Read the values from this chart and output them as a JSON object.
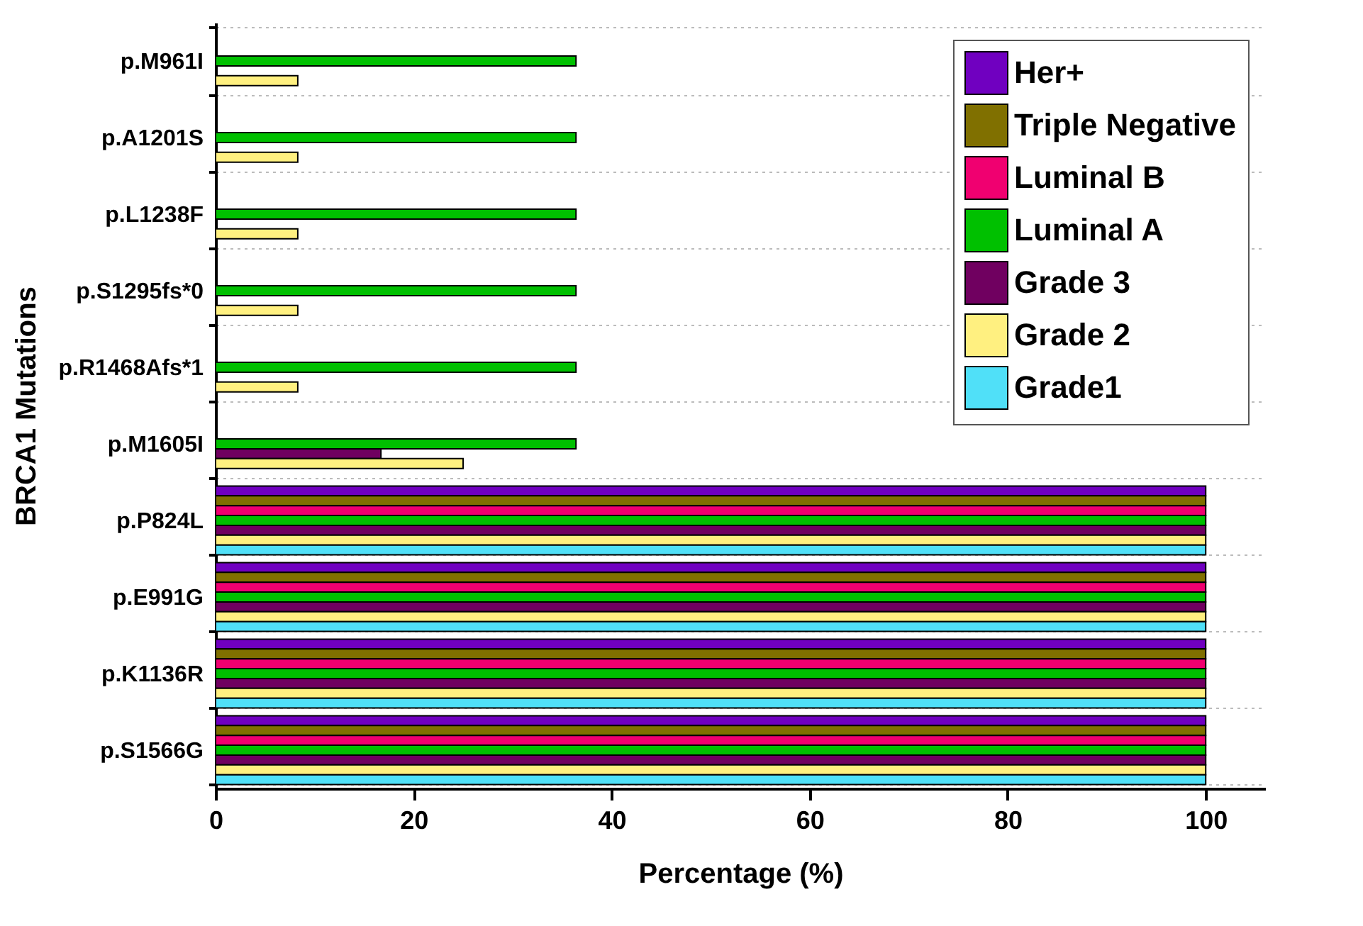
{
  "chart_data": {
    "type": "bar",
    "orientation": "horizontal",
    "xlabel": "Percentage (%)",
    "ylabel": "BRCA1 Mutations",
    "categories": [
      "p.M961I",
      "p.A1201S",
      "p.L1238F",
      "p.S1295fs*0",
      "p.R1468Afs*1",
      "p.M1605I",
      "p.P824L",
      "p.E991G",
      "p.K1136R",
      "p.S1566G"
    ],
    "series": [
      {
        "name": "Her+",
        "color": "#7000c0",
        "values": [
          null,
          null,
          null,
          null,
          null,
          null,
          100,
          100,
          100,
          100
        ]
      },
      {
        "name": "Triple Negative",
        "color": "#807000",
        "values": [
          null,
          null,
          null,
          null,
          null,
          null,
          100,
          100,
          100,
          100
        ]
      },
      {
        "name": "Luminal B",
        "color": "#f00070",
        "values": [
          null,
          null,
          null,
          null,
          null,
          null,
          100,
          100,
          100,
          100
        ]
      },
      {
        "name": "Luminal A",
        "color": "#00c000",
        "values": [
          36.4,
          36.4,
          36.4,
          36.4,
          36.4,
          36.4,
          100,
          100,
          100,
          100
        ]
      },
      {
        "name": "Grade 3",
        "color": "#700060",
        "values": [
          null,
          null,
          null,
          null,
          null,
          16.7,
          100,
          100,
          100,
          100
        ]
      },
      {
        "name": "Grade 2",
        "color": "#fff080",
        "values": [
          8.3,
          8.3,
          8.3,
          8.3,
          8.3,
          25,
          100,
          100,
          100,
          100
        ]
      },
      {
        "name": "Grade1",
        "color": "#50e0f8",
        "values": [
          null,
          null,
          null,
          null,
          null,
          null,
          100,
          100,
          100,
          100
        ]
      }
    ],
    "xlim": [
      0,
      106
    ],
    "xticks": [
      0,
      20,
      40,
      60,
      80,
      100
    ],
    "grid": "y",
    "legend": "top right"
  }
}
